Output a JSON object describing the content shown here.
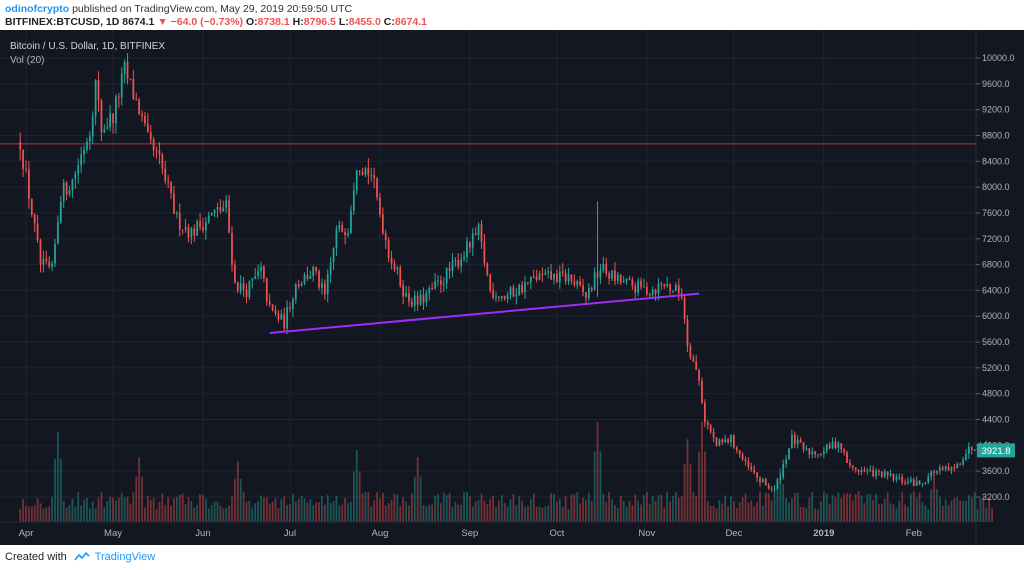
{
  "header": {
    "author": "odinofcrypto",
    "published_text": "published on TradingView.com, May 29, 2019 20:59:50 UTC",
    "symbol": "BITFINEX:BTCUSD, 1D",
    "last": "8674.1",
    "change": "−64.0 (−0.73%)",
    "o_label": "O:",
    "o_value": "8738.1",
    "h_label": "H:",
    "h_value": "8796.5",
    "l_label": "L:",
    "l_value": "8455.0",
    "c_label": "C:",
    "c_value": "8674.1"
  },
  "footer": {
    "created_with": "Created with",
    "brand": "TradingView"
  },
  "colors": {
    "background": "#131722",
    "up": "#26a69a",
    "down": "#ef5350",
    "trendline": "#a02cf6",
    "hline": "#b03a3a",
    "grid": "#1f2431",
    "text": "#b2b5be"
  },
  "chart_data": {
    "type": "candlestick",
    "title": "Bitcoin / U.S. Dollar, 1D, BITFINEX",
    "indicator": "Vol (20)",
    "x_tick_labels": [
      "Apr",
      "May",
      "Jun",
      "Jul",
      "Aug",
      "Sep",
      "Oct",
      "Nov",
      "Dec",
      "2019",
      "Feb"
    ],
    "y_tick_labels": [
      "3200.0",
      "3600.0",
      "4000.0",
      "4400.0",
      "4800.0",
      "5200.0",
      "5600.0",
      "6000.0",
      "6400.0",
      "6800.0",
      "7200.0",
      "7600.0",
      "8000.0",
      "8400.0",
      "8800.0",
      "9200.0",
      "9600.0",
      "10000.0"
    ],
    "y_ticks": [
      3200,
      3600,
      4000,
      4400,
      4800,
      5200,
      5600,
      6000,
      6400,
      6800,
      7200,
      7600,
      8000,
      8400,
      8800,
      9200,
      9600,
      10000
    ],
    "ylim": [
      2900,
      10200
    ],
    "last_price_label": "3921.8",
    "last_price": 3921.8,
    "horizontal_line": 8670,
    "trendline": {
      "start": [
        "2018-06-24",
        5740
      ],
      "end": [
        "2018-11-19",
        6350
      ]
    },
    "price_path": [
      [
        "2018-03-30",
        8700
      ],
      [
        "2018-04-06",
        6800
      ],
      [
        "2018-04-10",
        6700
      ],
      [
        "2018-04-13",
        7900
      ],
      [
        "2018-04-17",
        8100
      ],
      [
        "2018-04-23",
        8900
      ],
      [
        "2018-04-25",
        9600
      ],
      [
        "2018-04-27",
        8900
      ],
      [
        "2018-05-01",
        9100
      ],
      [
        "2018-05-05",
        9800
      ],
      [
        "2018-05-10",
        9200
      ],
      [
        "2018-05-13",
        8700
      ],
      [
        "2018-05-17",
        8400
      ],
      [
        "2018-05-23",
        7500
      ],
      [
        "2018-05-28",
        7300
      ],
      [
        "2018-06-05",
        7600
      ],
      [
        "2018-06-09",
        7700
      ],
      [
        "2018-06-12",
        6500
      ],
      [
        "2018-06-16",
        6400
      ],
      [
        "2018-06-21",
        6700
      ],
      [
        "2018-06-24",
        6100
      ],
      [
        "2018-06-29",
        5900
      ],
      [
        "2018-07-03",
        6500
      ],
      [
        "2018-07-09",
        6700
      ],
      [
        "2018-07-13",
        6300
      ],
      [
        "2018-07-17",
        7300
      ],
      [
        "2018-07-21",
        7400
      ],
      [
        "2018-07-24",
        8400
      ],
      [
        "2018-07-29",
        8200
      ],
      [
        "2018-08-04",
        7000
      ],
      [
        "2018-08-10",
        6300
      ],
      [
        "2018-08-14",
        6200
      ],
      [
        "2018-08-19",
        6400
      ],
      [
        "2018-08-25",
        6700
      ],
      [
        "2018-09-01",
        7100
      ],
      [
        "2018-09-04",
        7300
      ],
      [
        "2018-09-08",
        6400
      ],
      [
        "2018-09-13",
        6300
      ],
      [
        "2018-09-19",
        6450
      ],
      [
        "2018-09-24",
        6600
      ],
      [
        "2018-09-29",
        6600
      ],
      [
        "2018-10-05",
        6600
      ],
      [
        "2018-10-11",
        6300
      ],
      [
        "2018-10-16",
        6750
      ],
      [
        "2018-10-22",
        6550
      ],
      [
        "2018-10-28",
        6450
      ],
      [
        "2018-11-02",
        6400
      ],
      [
        "2018-11-07",
        6500
      ],
      [
        "2018-11-13",
        6350
      ],
      [
        "2018-11-15",
        5600
      ],
      [
        "2018-11-19",
        5000
      ],
      [
        "2018-11-21",
        4400
      ],
      [
        "2018-11-25",
        4000
      ],
      [
        "2018-11-30",
        4100
      ],
      [
        "2018-12-05",
        3700
      ],
      [
        "2018-12-10",
        3450
      ],
      [
        "2018-12-15",
        3300
      ],
      [
        "2018-12-18",
        3700
      ],
      [
        "2018-12-21",
        4100
      ],
      [
        "2018-12-26",
        3900
      ],
      [
        "2018-12-31",
        3900
      ],
      [
        "2019-01-06",
        4050
      ],
      [
        "2019-01-10",
        3650
      ],
      [
        "2019-01-15",
        3600
      ],
      [
        "2019-01-21",
        3550
      ],
      [
        "2019-01-28",
        3450
      ],
      [
        "2019-02-03",
        3400
      ],
      [
        "2019-02-08",
        3600
      ],
      [
        "2019-02-15",
        3620
      ],
      [
        "2019-02-19",
        3900
      ],
      [
        "2019-02-24",
        4050
      ],
      [
        "2019-02-28",
        3921.8
      ]
    ],
    "volume_spikes": [
      [
        "2018-04-12",
        2.5
      ],
      [
        "2018-05-10",
        1.8
      ],
      [
        "2018-06-13",
        1.7
      ],
      [
        "2018-07-24",
        2.0
      ],
      [
        "2018-08-14",
        1.8
      ],
      [
        "2018-10-15",
        2.8
      ],
      [
        "2018-11-15",
        2.3
      ],
      [
        "2018-11-20",
        2.8
      ],
      [
        "2018-12-17",
        1.5
      ],
      [
        "2019-02-08",
        1.3
      ]
    ]
  }
}
